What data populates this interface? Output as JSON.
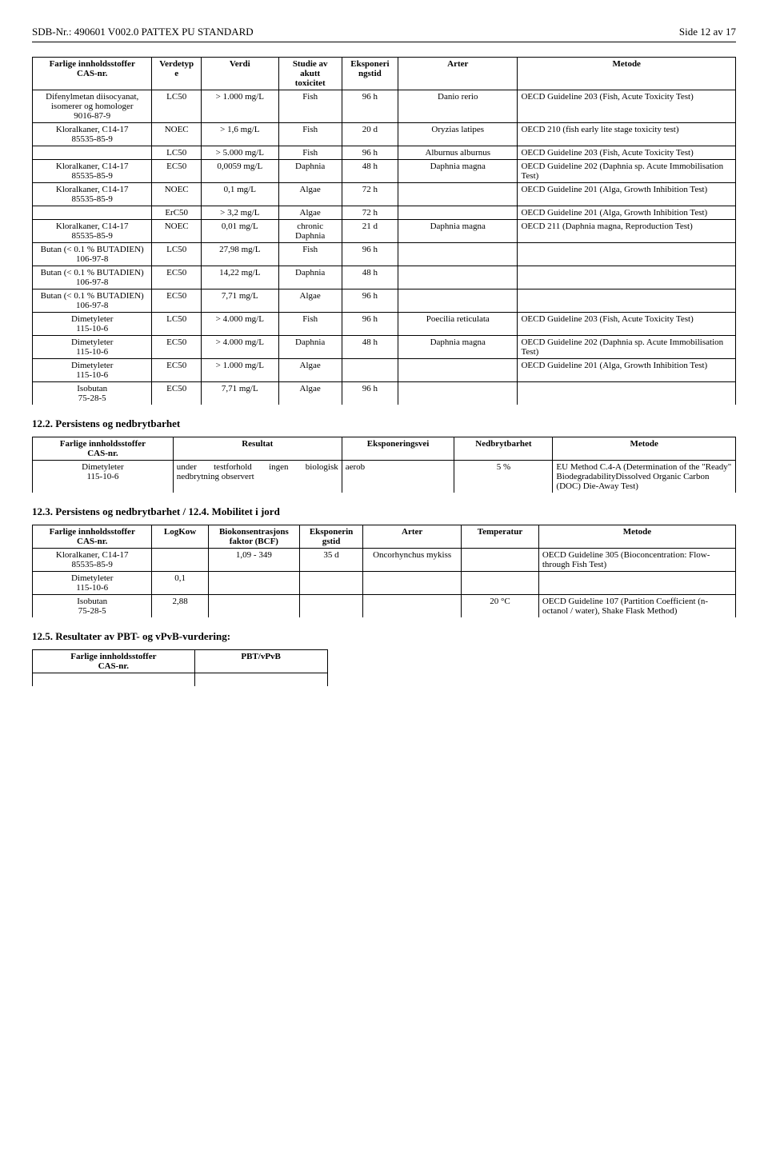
{
  "header": {
    "left": "SDB-Nr.: 490601  V002.0  PATTEX PU STANDARD",
    "right": "Side 12 av 17"
  },
  "table1": {
    "headers": [
      "Farlige innholdsstoffer\nCAS-nr.",
      "Verdetyp\ne",
      "Verdi",
      "Studie av\nakutt\ntoxicitet",
      "Eksponeri\nngstid",
      "Arter",
      "Metode"
    ],
    "rows": [
      [
        "Difenylmetan diisocyanat,\nisomerer og homologer\n9016-87-9",
        "LC50",
        "> 1.000 mg/L",
        "Fish",
        "96 h",
        "Danio rerio",
        "OECD Guideline 203 (Fish, Acute Toxicity Test)"
      ],
      [
        "Kloralkaner, C14-17\n85535-85-9",
        "NOEC",
        "> 1,6 mg/L",
        "Fish",
        "20 d",
        "Oryzias latipes",
        "OECD 210 (fish early lite stage toxicity test)"
      ],
      [
        "",
        "LC50",
        "> 5.000 mg/L",
        "Fish",
        "96 h",
        "Alburnus alburnus",
        "OECD Guideline 203 (Fish, Acute Toxicity Test)"
      ],
      [
        "Kloralkaner, C14-17\n85535-85-9",
        "EC50",
        "0,0059 mg/L",
        "Daphnia",
        "48 h",
        "Daphnia magna",
        "OECD Guideline 202 (Daphnia sp. Acute Immobilisation Test)"
      ],
      [
        "Kloralkaner, C14-17\n85535-85-9",
        "NOEC",
        "0,1 mg/L",
        "Algae",
        "72 h",
        "",
        "OECD Guideline 201 (Alga, Growth Inhibition Test)"
      ],
      [
        "",
        "ErC50",
        "> 3,2 mg/L",
        "Algae",
        "72 h",
        "",
        "OECD Guideline 201 (Alga, Growth Inhibition Test)"
      ],
      [
        "Kloralkaner, C14-17\n85535-85-9",
        "NOEC",
        "0,01 mg/L",
        "chronic\nDaphnia",
        "21 d",
        "Daphnia magna",
        "OECD 211 (Daphnia magna, Reproduction Test)"
      ],
      [
        "Butan (< 0.1 % BUTADIEN)\n106-97-8",
        "LC50",
        "27,98 mg/L",
        "Fish",
        "96 h",
        "",
        ""
      ],
      [
        "Butan (< 0.1 % BUTADIEN)\n106-97-8",
        "EC50",
        "14,22 mg/L",
        "Daphnia",
        "48 h",
        "",
        ""
      ],
      [
        "Butan (< 0.1 % BUTADIEN)\n106-97-8",
        "EC50",
        "7,71 mg/L",
        "Algae",
        "96 h",
        "",
        ""
      ],
      [
        "Dimetyleter\n115-10-6",
        "LC50",
        "> 4.000 mg/L",
        "Fish",
        "96 h",
        "Poecilia reticulata",
        "OECD Guideline 203 (Fish, Acute Toxicity Test)"
      ],
      [
        "Dimetyleter\n115-10-6",
        "EC50",
        "> 4.000 mg/L",
        "Daphnia",
        "48 h",
        "Daphnia magna",
        "OECD Guideline 202 (Daphnia sp. Acute Immobilisation Test)"
      ],
      [
        "Dimetyleter\n115-10-6",
        "EC50",
        "> 1.000 mg/L",
        "Algae",
        "",
        "",
        "OECD Guideline 201 (Alga, Growth Inhibition Test)"
      ],
      [
        "Isobutan\n75-28-5",
        "EC50",
        "7,71 mg/L",
        "Algae",
        "96 h",
        "",
        ""
      ]
    ]
  },
  "section2": "12.2. Persistens og nedbrytbarhet",
  "table2": {
    "headers": [
      "Farlige innholdsstoffer\nCAS-nr.",
      "Resultat",
      "Eksponeringsvei",
      "Nedbrytbarhet",
      "Metode"
    ],
    "rows": [
      [
        "Dimetyleter\n115-10-6",
        "under testforhold ingen biologisk nedbrytning observert",
        "aerob",
        "5 %",
        "EU Method C.4-A (Determination of the \"Ready\" BiodegradabilityDissolved Organic Carbon (DOC) Die-Away Test)"
      ]
    ]
  },
  "section3": "12.3. Persistens og nedbrytbarhet / 12.4. Mobilitet i jord",
  "table3": {
    "headers": [
      "Farlige innholdsstoffer\nCAS-nr.",
      "LogKow",
      "Biokonsentrasjons\nfaktor (BCF)",
      "Eksponerin\ngstid",
      "Arter",
      "Temperatur",
      "Metode"
    ],
    "rows": [
      [
        "Kloralkaner, C14-17\n85535-85-9",
        "",
        "1,09 - 349",
        "35 d",
        "Oncorhynchus mykiss",
        "",
        "OECD Guideline 305 (Bioconcentration: Flow-through Fish Test)"
      ],
      [
        "Dimetyleter\n115-10-6",
        "0,1",
        "",
        "",
        "",
        "",
        ""
      ],
      [
        "Isobutan\n75-28-5",
        "2,88",
        "",
        "",
        "",
        "20 °C",
        "OECD Guideline 107 (Partition Coefficient (n-octanol / water), Shake Flask Method)"
      ]
    ]
  },
  "section4": "12.5. Resultater av PBT- og vPvB-vurdering:",
  "table4": {
    "headers": [
      "Farlige innholdsstoffer\nCAS-nr.",
      "PBT/vPvB"
    ]
  }
}
